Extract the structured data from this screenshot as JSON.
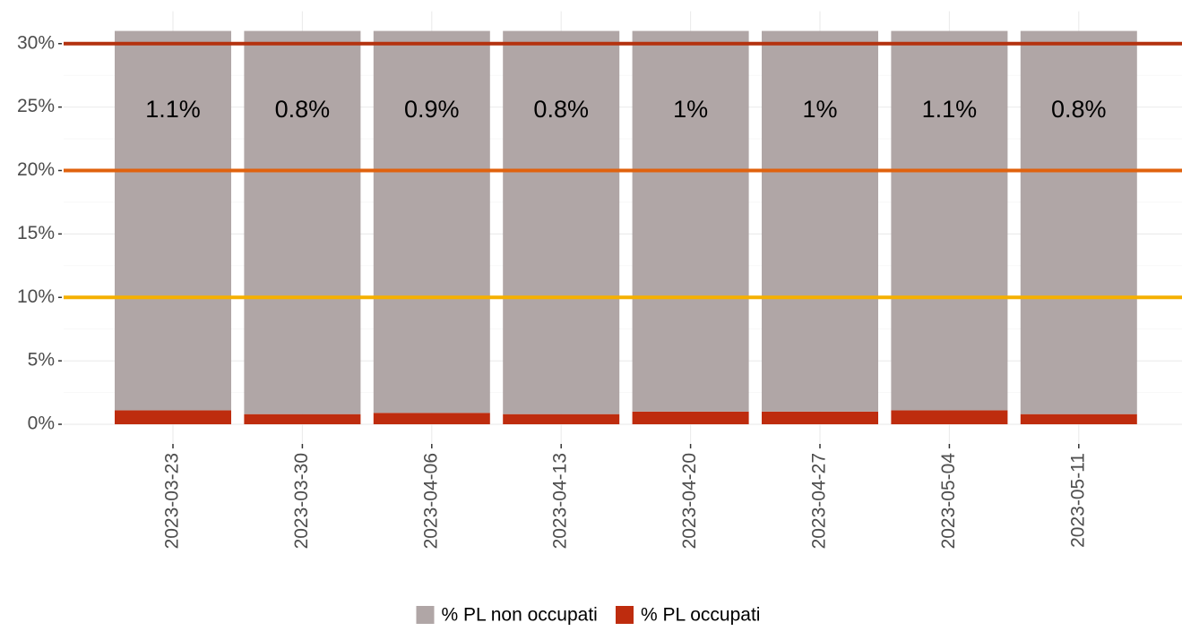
{
  "chart_data": {
    "type": "stacked_bar",
    "categories": [
      "2023-03-23",
      "2023-03-30",
      "2023-04-06",
      "2023-04-13",
      "2023-04-20",
      "2023-04-27",
      "2023-05-04",
      "2023-05-11"
    ],
    "series": [
      {
        "name": "% PL non occupati",
        "color": "#b0a6a6",
        "values": [
          29.9,
          30.2,
          30.1,
          30.2,
          30,
          30,
          29.9,
          30.2
        ]
      },
      {
        "name": "% PL occupati",
        "color": "#be2c0e",
        "values": [
          1.1,
          0.8,
          0.9,
          0.8,
          1,
          1,
          1.1,
          0.8
        ],
        "value_labels": [
          "1.1%",
          "0.8%",
          "0.9%",
          "0.8%",
          "1%",
          "1%",
          "1.1%",
          "0.8%"
        ]
      }
    ],
    "ylim": [
      -1.55,
      32.55
    ],
    "yticks": [
      {
        "value": 0,
        "label": "0%"
      },
      {
        "value": 5,
        "label": "5%"
      },
      {
        "value": 10,
        "label": "10%"
      },
      {
        "value": 15,
        "label": "15%"
      },
      {
        "value": 20,
        "label": "20%"
      },
      {
        "value": 25,
        "label": "25%"
      },
      {
        "value": 30,
        "label": "30%"
      }
    ],
    "reference_lines": [
      {
        "value": 10,
        "color": "#f5b000"
      },
      {
        "value": 20,
        "color": "#e0620e"
      },
      {
        "value": 30,
        "color": "#b4320f"
      }
    ],
    "grid": true,
    "legend": "bottom"
  }
}
